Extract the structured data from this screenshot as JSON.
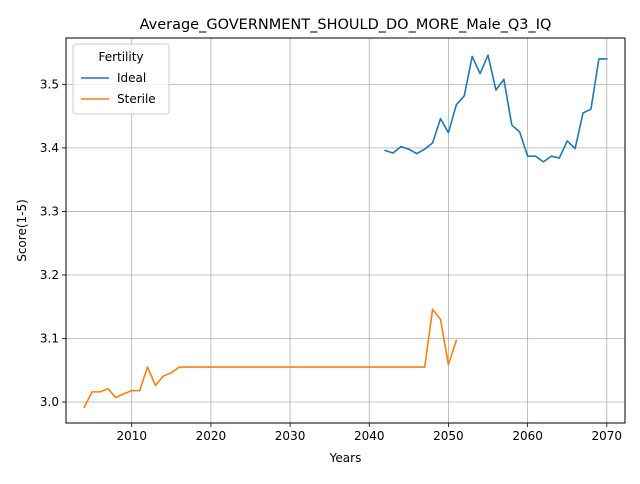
{
  "chart_data": {
    "type": "line",
    "title": "Average_GOVERNMENT_SHOULD_DO_MORE_Male_Q3_IQ",
    "xlabel": "Years",
    "ylabel": "Score(1-5)",
    "xlim": [
      2001.7,
      2072.3
    ],
    "ylim": [
      2.967,
      3.573
    ],
    "xticks": [
      2010,
      2020,
      2030,
      2040,
      2050,
      2060,
      2070
    ],
    "yticks": [
      3.0,
      3.1,
      3.2,
      3.3,
      3.4,
      3.5
    ],
    "ytick_labels": [
      "3.0",
      "3.1",
      "3.2",
      "3.3",
      "3.4",
      "3.5"
    ],
    "grid": true,
    "legend": {
      "title": "Fertility",
      "position": "top-left"
    },
    "series": [
      {
        "name": "Ideal",
        "color": "#1f77b4",
        "x": [
          2042,
          2043,
          2044,
          2045,
          2046,
          2047,
          2048,
          2049,
          2050,
          2051,
          2052,
          2053,
          2054,
          2055,
          2056,
          2057,
          2058,
          2059,
          2060,
          2061,
          2062,
          2063,
          2064,
          2065,
          2066,
          2067,
          2068,
          2069,
          2070
        ],
        "y": [
          3.396,
          3.392,
          3.402,
          3.398,
          3.391,
          3.398,
          3.408,
          3.446,
          3.424,
          3.468,
          3.482,
          3.544,
          3.517,
          3.546,
          3.491,
          3.508,
          3.436,
          3.425,
          3.387,
          3.387,
          3.378,
          3.387,
          3.384,
          3.411,
          3.399,
          3.455,
          3.461,
          3.54,
          3.54
        ]
      },
      {
        "name": "Sterile",
        "color": "#ff7f0e",
        "x": [
          2004,
          2005,
          2006,
          2007,
          2008,
          2009,
          2010,
          2011,
          2012,
          2013,
          2014,
          2015,
          2016,
          2017,
          2018,
          2019,
          2020,
          2021,
          2022,
          2023,
          2024,
          2025,
          2026,
          2027,
          2028,
          2029,
          2030,
          2031,
          2032,
          2033,
          2034,
          2035,
          2036,
          2037,
          2038,
          2039,
          2040,
          2041,
          2042,
          2043,
          2044,
          2045,
          2046,
          2047,
          2048,
          2049,
          2050,
          2051
        ],
        "y": [
          2.992,
          3.016,
          3.016,
          3.021,
          3.007,
          3.013,
          3.018,
          3.018,
          3.055,
          3.026,
          3.041,
          3.046,
          3.055,
          3.055,
          3.055,
          3.055,
          3.055,
          3.055,
          3.055,
          3.055,
          3.055,
          3.055,
          3.055,
          3.055,
          3.055,
          3.055,
          3.055,
          3.055,
          3.055,
          3.055,
          3.055,
          3.055,
          3.055,
          3.055,
          3.055,
          3.055,
          3.055,
          3.055,
          3.055,
          3.055,
          3.055,
          3.055,
          3.055,
          3.055,
          3.146,
          3.13,
          3.059,
          3.097
        ]
      }
    ]
  }
}
